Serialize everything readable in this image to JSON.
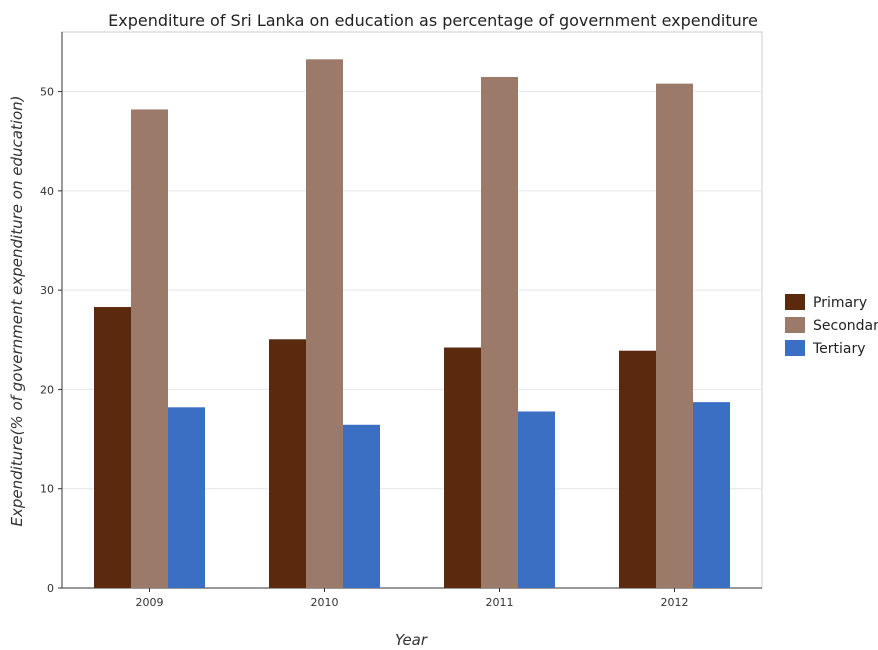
{
  "chart_data": {
    "type": "bar",
    "title": "Expenditure of Sri Lanka on education as percentage of government expenditure",
    "xlabel": "Year",
    "ylabel": "Expenditure(% of government expenditure on education)",
    "categories": [
      "2009",
      "2010",
      "2011",
      "2012"
    ],
    "series": [
      {
        "name": "Primary",
        "color": "#5b2a0e",
        "values": [
          28.3,
          25.05,
          24.22,
          23.9
        ]
      },
      {
        "name": "Secondary",
        "color": "#9c7a6a",
        "values": [
          48.2,
          53.25,
          51.47,
          50.8
        ]
      },
      {
        "name": "Tertiary",
        "color": "#3a6fc4",
        "values": [
          18.2,
          16.44,
          17.78,
          18.72
        ]
      }
    ],
    "ylim": [
      0,
      56
    ],
    "yticks": [
      0,
      10,
      20,
      30,
      40,
      50
    ],
    "grid": true,
    "legend": "right"
  }
}
